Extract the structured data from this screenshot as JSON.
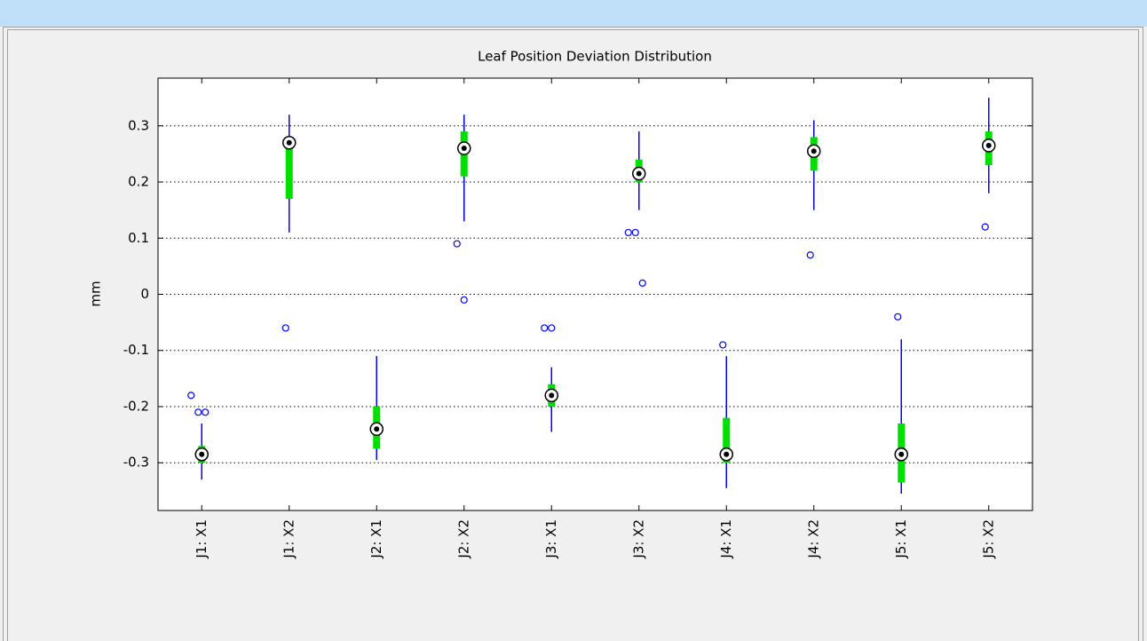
{
  "chart_data": {
    "type": "boxplot",
    "title": "Leaf Position Deviation Distribution",
    "y_label": "mm",
    "categories": [
      "J1: X1",
      "J1: X2",
      "J2: X1",
      "J2: X2",
      "J3: X1",
      "J3: X2",
      "J4: X1",
      "J4: X2",
      "J5: X1",
      "J5: X2"
    ],
    "boxes": [
      {
        "whislo": -0.33,
        "q1": -0.3,
        "med": -0.285,
        "q3": -0.27,
        "whishi": -0.23,
        "fliers": [
          -0.18,
          -0.21,
          -0.21
        ]
      },
      {
        "whislo": 0.11,
        "q1": 0.17,
        "med": 0.27,
        "q3": 0.275,
        "whishi": 0.32,
        "fliers": [
          -0.06
        ]
      },
      {
        "whislo": -0.295,
        "q1": -0.275,
        "med": -0.24,
        "q3": -0.2,
        "whishi": -0.11,
        "fliers": []
      },
      {
        "whislo": 0.13,
        "q1": 0.21,
        "med": 0.26,
        "q3": 0.29,
        "whishi": 0.32,
        "fliers": [
          0.09,
          -0.01
        ]
      },
      {
        "whislo": -0.245,
        "q1": -0.2,
        "med": -0.18,
        "q3": -0.16,
        "whishi": -0.13,
        "fliers": [
          -0.06,
          -0.06
        ]
      },
      {
        "whislo": 0.15,
        "q1": 0.2,
        "med": 0.215,
        "q3": 0.24,
        "whishi": 0.29,
        "fliers": [
          0.11,
          0.11,
          0.02
        ]
      },
      {
        "whislo": -0.345,
        "q1": -0.3,
        "med": -0.285,
        "q3": -0.22,
        "whishi": -0.11,
        "fliers": [
          -0.09
        ]
      },
      {
        "whislo": 0.15,
        "q1": 0.22,
        "med": 0.255,
        "q3": 0.28,
        "whishi": 0.31,
        "fliers": [
          0.07
        ]
      },
      {
        "whislo": -0.355,
        "q1": -0.335,
        "med": -0.285,
        "q3": -0.23,
        "whishi": -0.08,
        "fliers": [
          -0.04
        ]
      },
      {
        "whislo": 0.18,
        "q1": 0.23,
        "med": 0.265,
        "q3": 0.29,
        "whishi": 0.35,
        "fliers": [
          0.12
        ]
      }
    ],
    "whisker_color": "#0000ff",
    "box_color": "#00e000",
    "flier_color": "#0000ff",
    "ylim": [
      -0.385,
      0.385
    ],
    "yticks": [
      -0.3,
      -0.2,
      -0.1,
      0,
      0.1,
      0.2,
      0.3
    ],
    "grid": true
  }
}
